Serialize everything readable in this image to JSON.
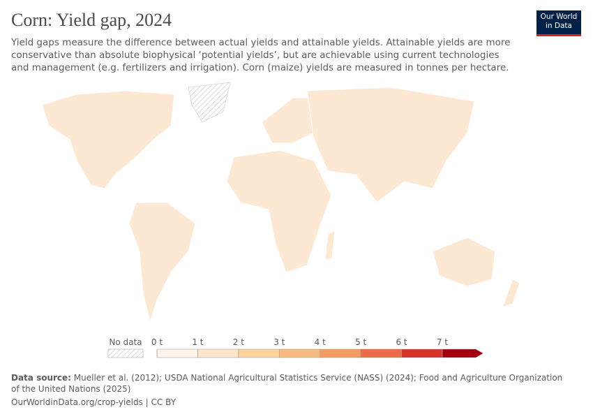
{
  "header": {
    "title": "Corn: Yield gap, 2024",
    "subtitle": "Yield gaps measure the difference between actual yields and attainable yields. Attainable yields are more conservative than absolute biophysical ‘potential yields’, but are achievable using current technologies and management (e.g. fertilizers and irrigation). Corn (maize) yields are measured in tonnes per hectare.",
    "logo": [
      "Our World",
      "in Data"
    ]
  },
  "legend": {
    "no_data": "No data",
    "ticks": [
      {
        "value": 0,
        "label": "0 t"
      },
      {
        "value": 1,
        "label": "1 t"
      },
      {
        "value": 2,
        "label": "2 t"
      },
      {
        "value": 3,
        "label": "3 t"
      },
      {
        "value": 4,
        "label": "4 t"
      },
      {
        "value": 5,
        "label": "5 t"
      },
      {
        "value": 6,
        "label": "6 t"
      },
      {
        "value": 7,
        "label": "7 t"
      }
    ],
    "colors": [
      "#fef4ea",
      "#fde6c9",
      "#fbd39d",
      "#f9bb7d",
      "#f59b5d",
      "#ec6c46",
      "#d6342b",
      "#a30010"
    ]
  },
  "footer": {
    "source_label": "Data source:",
    "source": "Mueller et al. (2012); USDA National Agricultural Statistics Service (NASS) (2024); Food and Agriculture Organization of the United Nations (2025)",
    "url_license": "OurWorldinData.org/crop-yields | CC BY"
  }
}
